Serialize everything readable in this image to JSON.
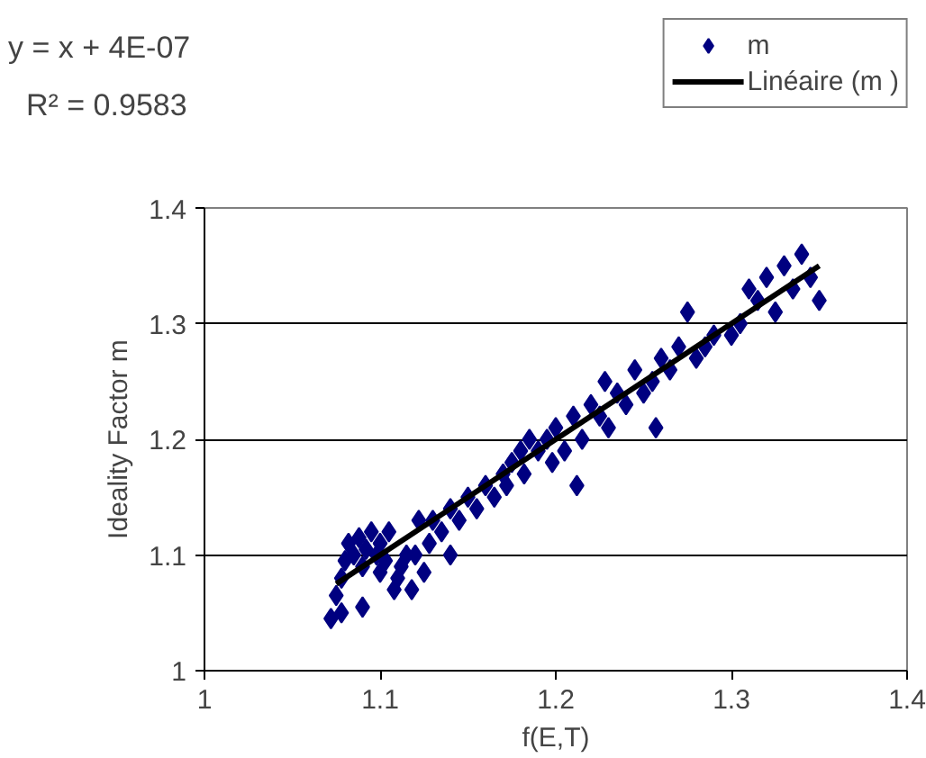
{
  "chart_data": {
    "type": "scatter",
    "xlabel": "f(E,T)",
    "ylabel": "Ideality Factor m",
    "annotations": [
      "y = x + 4E-07",
      "R² = 0.9583"
    ],
    "xlim": [
      1,
      1.4
    ],
    "ylim": [
      1,
      1.4
    ],
    "xticks": [
      1,
      1.1,
      1.2,
      1.3,
      1.4
    ],
    "yticks": [
      1,
      1.1,
      1.2,
      1.3,
      1.4
    ],
    "grid": "y",
    "legend": "top right",
    "series": [
      {
        "name": "m",
        "color": "#000080",
        "marker": "diamond",
        "x": [
          1.072,
          1.078,
          1.075,
          1.078,
          1.08,
          1.082,
          1.085,
          1.088,
          1.09,
          1.092,
          1.095,
          1.098,
          1.1,
          1.1,
          1.103,
          1.105,
          1.09,
          1.108,
          1.11,
          1.112,
          1.115,
          1.118,
          1.12,
          1.122,
          1.125,
          1.128,
          1.13,
          1.135,
          1.14,
          1.14,
          1.145,
          1.15,
          1.155,
          1.16,
          1.165,
          1.17,
          1.172,
          1.175,
          1.18,
          1.182,
          1.185,
          1.19,
          1.195,
          1.198,
          1.2,
          1.205,
          1.21,
          1.212,
          1.215,
          1.22,
          1.225,
          1.228,
          1.23,
          1.235,
          1.24,
          1.245,
          1.25,
          1.255,
          1.257,
          1.26,
          1.265,
          1.27,
          1.275,
          1.28,
          1.285,
          1.29,
          1.3,
          1.305,
          1.31,
          1.315,
          1.32,
          1.325,
          1.33,
          1.335,
          1.34,
          1.345,
          1.35
        ],
        "values": [
          1.045,
          1.05,
          1.065,
          1.08,
          1.095,
          1.11,
          1.1,
          1.115,
          1.09,
          1.105,
          1.12,
          1.1,
          1.085,
          1.11,
          1.095,
          1.12,
          1.055,
          1.07,
          1.08,
          1.09,
          1.1,
          1.07,
          1.1,
          1.13,
          1.085,
          1.11,
          1.13,
          1.12,
          1.14,
          1.1,
          1.13,
          1.15,
          1.14,
          1.16,
          1.15,
          1.17,
          1.16,
          1.18,
          1.19,
          1.17,
          1.2,
          1.19,
          1.2,
          1.18,
          1.21,
          1.19,
          1.22,
          1.16,
          1.2,
          1.23,
          1.22,
          1.25,
          1.21,
          1.24,
          1.23,
          1.26,
          1.24,
          1.25,
          1.21,
          1.27,
          1.26,
          1.28,
          1.31,
          1.27,
          1.28,
          1.29,
          1.29,
          1.3,
          1.33,
          1.32,
          1.34,
          1.31,
          1.35,
          1.33,
          1.36,
          1.34,
          1.32
        ]
      },
      {
        "name": "Linéaire (m )",
        "type": "line",
        "color": "#000000",
        "line_style": "solid",
        "x": [
          1.075,
          1.35
        ],
        "values": [
          1.075,
          1.35
        ]
      }
    ]
  }
}
